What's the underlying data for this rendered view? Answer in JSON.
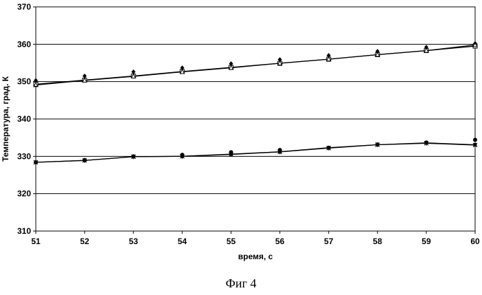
{
  "chart_data": {
    "type": "line",
    "title": "",
    "xlabel": "время, с",
    "ylabel": "Температура, град. К",
    "xlim": [
      51,
      60
    ],
    "ylim": [
      310,
      370
    ],
    "x_ticks": [
      51,
      52,
      53,
      54,
      55,
      56,
      57,
      58,
      59,
      60
    ],
    "y_ticks": [
      310,
      320,
      330,
      340,
      350,
      360,
      370
    ],
    "grid": "horizontal",
    "legend": "none",
    "x": [
      51,
      52,
      53,
      54,
      55,
      56,
      57,
      58,
      59,
      60
    ],
    "series": [
      {
        "marker": "diamond",
        "line": false,
        "values": [
          350.3,
          351.5,
          352.6,
          353.7,
          354.8,
          355.9,
          357.0,
          358.1,
          359.2,
          360.2
        ]
      },
      {
        "marker": "square-open",
        "line": true,
        "values": [
          349.3,
          350.4,
          351.5,
          352.7,
          353.8,
          354.9,
          356.0,
          357.2,
          358.3,
          359.5
        ]
      },
      {
        "marker": "triangle",
        "line": true,
        "values": [
          349.1,
          350.3,
          351.4,
          352.6,
          353.7,
          354.9,
          356.0,
          357.2,
          358.3,
          359.8
        ]
      },
      {
        "marker": "circle",
        "line": false,
        "values": [
          328.4,
          329.0,
          330.0,
          330.4,
          331.1,
          331.7,
          332.3,
          333.2,
          333.7,
          334.4
        ]
      },
      {
        "marker": "square",
        "line": true,
        "values": [
          328.4,
          328.9,
          329.9,
          330.0,
          330.6,
          331.2,
          332.3,
          333.1,
          333.6,
          333.1
        ]
      },
      {
        "marker": "cross",
        "line": true,
        "values": [
          328.4,
          328.9,
          329.9,
          330.0,
          330.5,
          331.2,
          332.2,
          333.1,
          333.5,
          333.0
        ]
      }
    ],
    "colors": {
      "line": "#000000",
      "grid": "#000000",
      "background": "#ffffff"
    }
  },
  "figure_caption": "Фиг 4"
}
